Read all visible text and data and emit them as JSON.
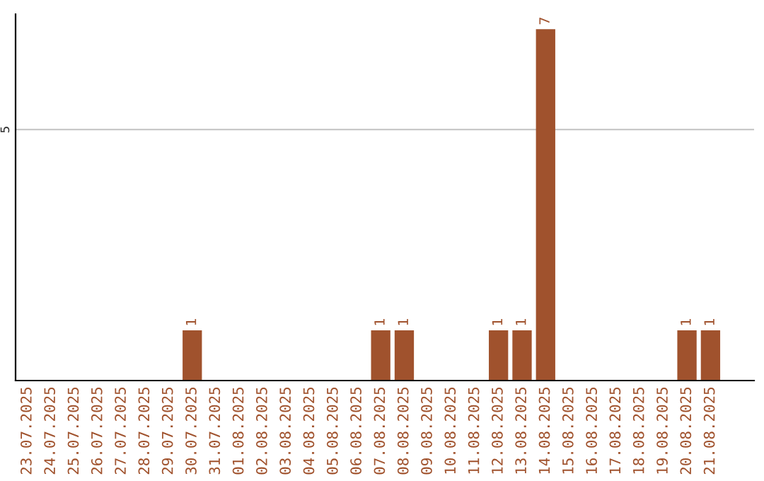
{
  "chart_data": {
    "type": "bar",
    "categories": [
      "23.07.2025",
      "24.07.2025",
      "25.07.2025",
      "26.07.2025",
      "27.07.2025",
      "28.07.2025",
      "29.07.2025",
      "30.07.2025",
      "31.07.2025",
      "01.08.2025",
      "02.08.2025",
      "03.08.2025",
      "04.08.2025",
      "05.08.2025",
      "06.08.2025",
      "07.08.2025",
      "08.08.2025",
      "09.08.2025",
      "10.08.2025",
      "11.08.2025",
      "12.08.2025",
      "13.08.2025",
      "14.08.2025",
      "15.08.2025",
      "16.08.2025",
      "17.08.2025",
      "18.08.2025",
      "19.08.2025",
      "20.08.2025",
      "21.08.2025"
    ],
    "values": [
      0,
      0,
      0,
      0,
      0,
      0,
      0,
      1,
      0,
      0,
      0,
      0,
      0,
      0,
      0,
      1,
      1,
      0,
      0,
      0,
      1,
      1,
      7,
      0,
      0,
      0,
      0,
      0,
      1,
      1
    ],
    "value_labels": [
      null,
      null,
      null,
      null,
      null,
      null,
      null,
      "1",
      null,
      null,
      null,
      null,
      null,
      null,
      null,
      "1",
      "1",
      null,
      null,
      null,
      "1",
      "1",
      "7",
      null,
      null,
      null,
      null,
      null,
      "1",
      "1"
    ],
    "color": "#a0522d",
    "ylim": [
      0,
      7.3
    ],
    "yticks": [
      5
    ],
    "grid": "y",
    "legend": false
  }
}
